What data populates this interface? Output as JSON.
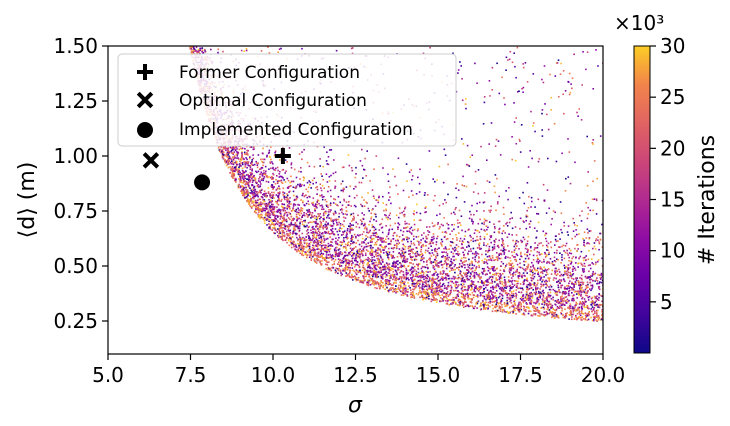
{
  "chart_data": {
    "type": "scatter",
    "title": "",
    "xlabel": "σ",
    "ylabel": "⟨d⟩ (m)",
    "xlim": [
      5.0,
      20.0
    ],
    "ylim": [
      0.1,
      1.5
    ],
    "x_ticks": [
      5.0,
      7.5,
      10.0,
      12.5,
      15.0,
      17.5,
      20.0
    ],
    "x_tick_labels": [
      "5.0",
      "7.5",
      "10.0",
      "12.5",
      "15.0",
      "17.5",
      "20.0"
    ],
    "y_ticks": [
      0.25,
      0.5,
      0.75,
      1.0,
      1.25,
      1.5
    ],
    "y_tick_labels": [
      "0.25",
      "0.50",
      "0.75",
      "1.00",
      "1.25",
      "1.50"
    ],
    "grid": false,
    "legend_position": "top-left",
    "colormap": "plasma",
    "colorbar": {
      "label": "# Iterations",
      "multiplier": "×10³",
      "range": [
        0,
        30
      ],
      "ticks": [
        5,
        10,
        15,
        20,
        25,
        30
      ],
      "tick_labels": [
        "5",
        "10",
        "15",
        "20",
        "25",
        "30"
      ]
    },
    "highlighted_points": [
      {
        "name": "Former Configuration",
        "marker": "plus",
        "x": 10.3,
        "y": 1.0
      },
      {
        "name": "Optimal Configuration",
        "marker": "x",
        "x": 6.3,
        "y": 0.98
      },
      {
        "name": "Implemented Configuration",
        "marker": "circle",
        "x": 7.85,
        "y": 0.88
      }
    ]
  }
}
